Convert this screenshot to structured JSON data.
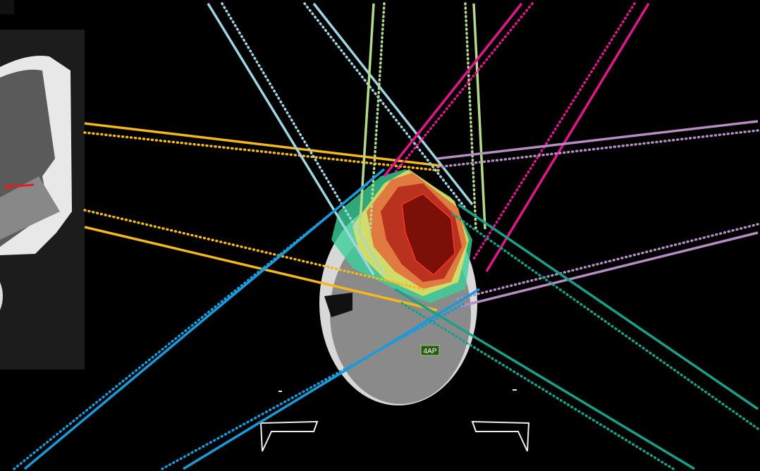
{
  "image": {
    "label": "4AP"
  }
}
